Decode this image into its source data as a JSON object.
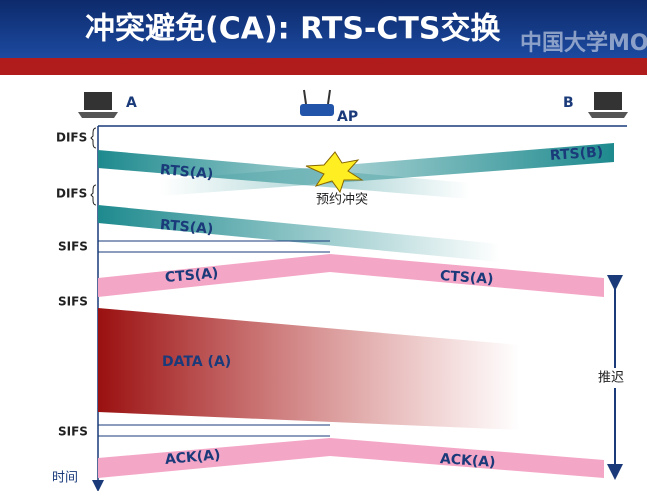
{
  "header": {
    "title": "冲突避免(CA): RTS-CTS交换",
    "watermark": "中国大学MO"
  },
  "nodes": [
    {
      "label": "A"
    },
    {
      "label": "AP"
    },
    {
      "label": "B"
    }
  ],
  "intervals": [
    "DIFS",
    "DIFS",
    "SIFS",
    "SIFS",
    "SIFS"
  ],
  "frames": [
    "RTS(A)",
    "RTS(B)",
    "RTS(A)",
    "CTS(A)",
    "CTS(A)",
    "DATA (A)",
    "ACK(A)",
    "ACK(A)"
  ],
  "collision": "预约冲突",
  "defer": "推迟",
  "time_axis": "时间"
}
